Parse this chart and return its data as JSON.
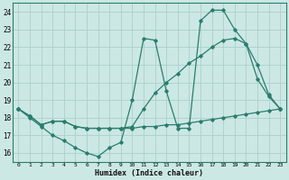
{
  "xlabel": "Humidex (Indice chaleur)",
  "xlim": [
    -0.5,
    23.5
  ],
  "ylim": [
    15.5,
    24.5
  ],
  "yticks": [
    16,
    17,
    18,
    19,
    20,
    21,
    22,
    23,
    24
  ],
  "xticks": [
    0,
    1,
    2,
    3,
    4,
    5,
    6,
    7,
    8,
    9,
    10,
    11,
    12,
    13,
    14,
    15,
    16,
    17,
    18,
    19,
    20,
    21,
    22,
    23
  ],
  "line_color": "#2a7d6e",
  "bg_color": "#cce8e4",
  "grid_color": "#aacfca",
  "series": {
    "line1": {
      "x": [
        0,
        1,
        2,
        3,
        4,
        5,
        6,
        7,
        8,
        9,
        10,
        11,
        12,
        13,
        14,
        15,
        16,
        17,
        18,
        19,
        20,
        21,
        22,
        23
      ],
      "y": [
        18.5,
        18.0,
        17.5,
        17.0,
        16.7,
        16.3,
        16.0,
        15.8,
        16.3,
        16.6,
        19.0,
        22.5,
        22.4,
        19.5,
        17.4,
        17.4,
        23.5,
        24.1,
        24.1,
        23.0,
        22.2,
        20.2,
        19.2,
        18.5
      ]
    },
    "line2": {
      "x": [
        0,
        1,
        2,
        3,
        4,
        5,
        6,
        7,
        8,
        9,
        10,
        11,
        12,
        13,
        14,
        15,
        16,
        17,
        18,
        19,
        20,
        21,
        22,
        23
      ],
      "y": [
        18.5,
        18.1,
        17.6,
        17.8,
        17.8,
        17.5,
        17.4,
        17.4,
        17.4,
        17.4,
        17.4,
        17.5,
        17.5,
        17.6,
        17.6,
        17.7,
        17.8,
        17.9,
        18.0,
        18.1,
        18.2,
        18.3,
        18.4,
        18.5
      ]
    },
    "line3": {
      "x": [
        0,
        1,
        2,
        3,
        4,
        5,
        6,
        7,
        8,
        9,
        10,
        11,
        12,
        13,
        14,
        15,
        16,
        17,
        18,
        19,
        20,
        21,
        22,
        23
      ],
      "y": [
        18.5,
        18.1,
        17.6,
        17.8,
        17.8,
        17.5,
        17.4,
        17.4,
        17.4,
        17.4,
        17.5,
        18.5,
        19.4,
        20.0,
        20.5,
        21.1,
        21.5,
        22.0,
        22.4,
        22.5,
        22.2,
        21.0,
        19.3,
        18.5
      ]
    }
  }
}
